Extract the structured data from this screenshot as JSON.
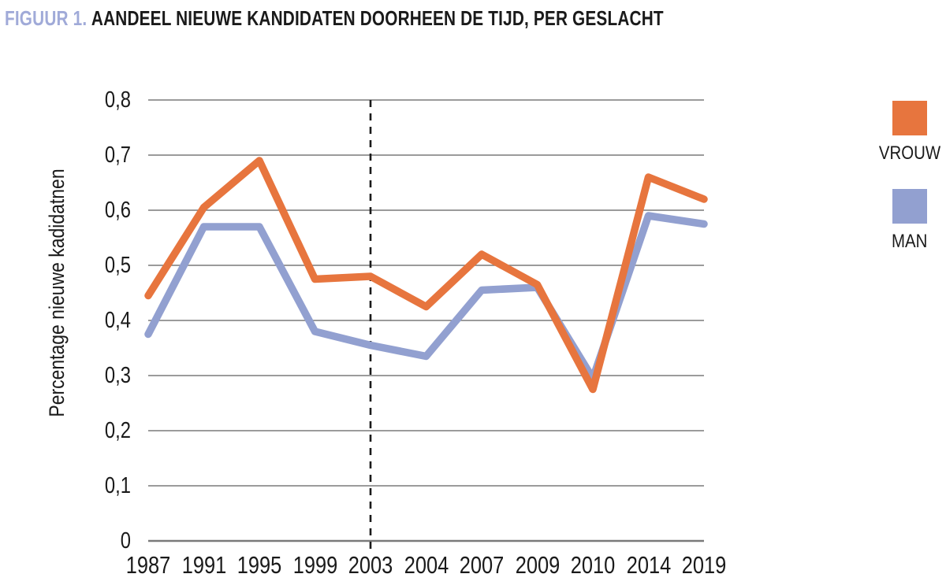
{
  "title": {
    "figure_label": "FIGUUR 1.",
    "text": "AANDEEL NIEUWE KANDIDATEN DOORHEEN DE TIJD, PER GESLACHT"
  },
  "chart_data": {
    "type": "line",
    "title": "FIGUUR 1. AANDEEL NIEUWE KANDIDATEN DOORHEEN DE TIJD, PER GESLACHT",
    "categories": [
      "1987",
      "1991",
      "1995",
      "1999",
      "2003",
      "2004",
      "2007",
      "2009",
      "2010",
      "2014",
      "2019"
    ],
    "series": [
      {
        "name": "VROUW",
        "color": "#E7753E",
        "values": [
          0.445,
          0.605,
          0.69,
          0.475,
          0.48,
          0.425,
          0.52,
          0.465,
          0.275,
          0.66,
          0.62
        ]
      },
      {
        "name": "MAN",
        "color": "#92A0D0",
        "values": [
          0.375,
          0.57,
          0.57,
          0.38,
          0.355,
          0.335,
          0.455,
          0.46,
          0.295,
          0.59,
          0.575
        ]
      }
    ],
    "xlabel": "",
    "ylabel": "Percentage nieuwe kadidatnen",
    "ylim": [
      0,
      0.8
    ],
    "yticks": [
      "0",
      "0,1",
      "0,2",
      "0,3",
      "0,4",
      "0,5",
      "0,6",
      "0,7",
      "0,8"
    ],
    "ytick_values": [
      0,
      0.1,
      0.2,
      0.3,
      0.4,
      0.5,
      0.6,
      0.7,
      0.8
    ],
    "grid": true,
    "legend_position": "right",
    "annotation": {
      "dashed_vline_at": "2003"
    }
  },
  "legend": {
    "entries": [
      {
        "label": "VROUW",
        "color": "#E7753E"
      },
      {
        "label": "MAN",
        "color": "#92A0D0"
      }
    ]
  },
  "colors": {
    "figure_label": "#A0AAD8",
    "grid": "#7a7a7a",
    "dashed_line": "#1a1a1a",
    "text": "#1a1a1a",
    "vrouw": "#E7753E",
    "man": "#92A0D0"
  }
}
